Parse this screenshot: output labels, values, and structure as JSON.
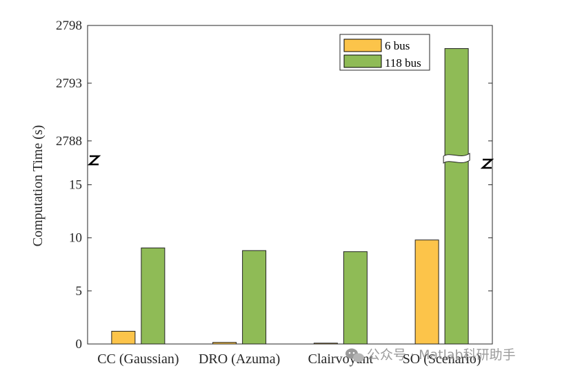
{
  "chart_data": {
    "type": "bar",
    "ylabel": "Computation Time (s)",
    "categories": [
      "CC (Gaussian)",
      "DRO (Azuma)",
      "Clairvoyant",
      "SO (Scenario)"
    ],
    "series": [
      {
        "name": "6 bus",
        "color": "#FCC44A",
        "values": [
          1.2,
          0.15,
          0.08,
          9.8
        ]
      },
      {
        "name": "118 bus",
        "color": "#8FBB56",
        "values": [
          9.05,
          8.8,
          8.7,
          2796.0
        ]
      }
    ],
    "y_axis": {
      "broken": true,
      "lower_segment": {
        "range": [
          0,
          17.5
        ],
        "ticks": [
          0,
          5,
          10,
          15
        ]
      },
      "upper_segment": {
        "range": [
          2786.5,
          2798
        ],
        "ticks": [
          2788,
          2793,
          2798
        ]
      }
    },
    "legend_position": "top-right",
    "grid": false
  },
  "watermark": {
    "icon": "wechat-icon",
    "text": "公众号 · Matlab科研助手"
  }
}
